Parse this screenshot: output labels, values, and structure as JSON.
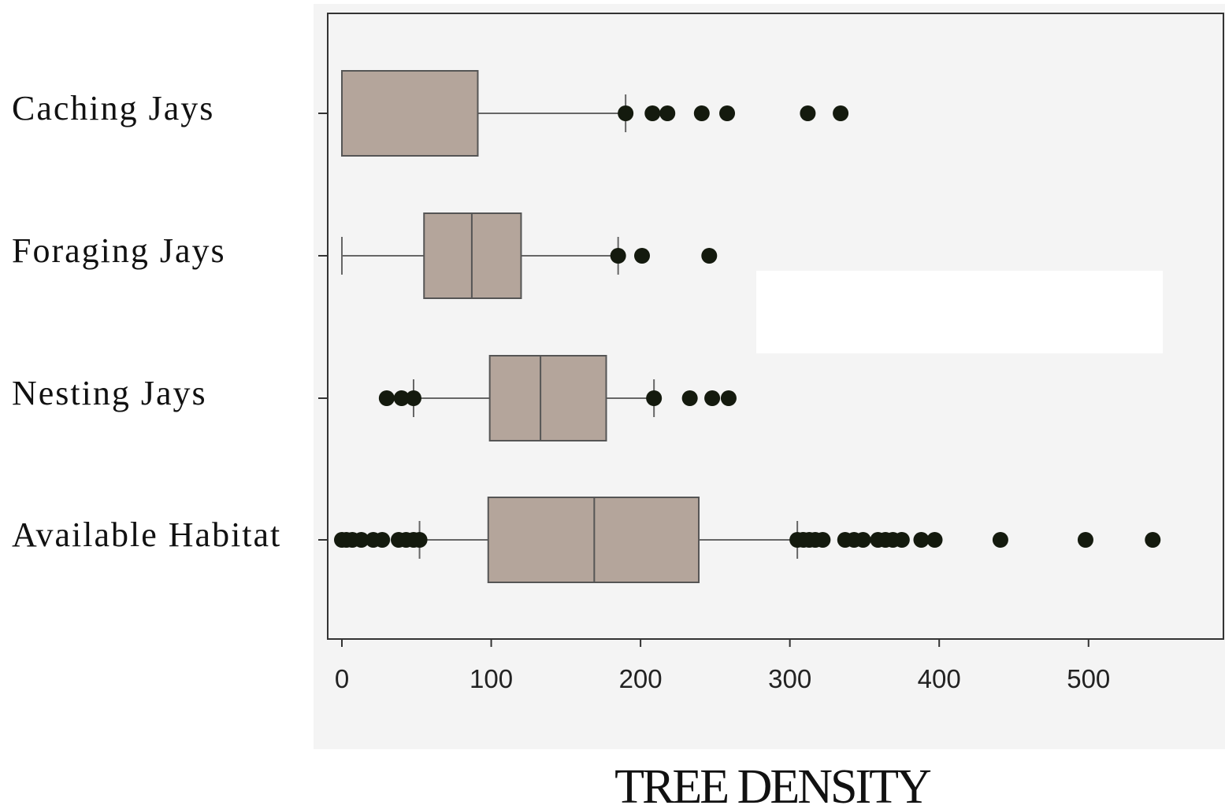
{
  "chart_data": {
    "type": "boxplot",
    "orientation": "horizontal",
    "title": "",
    "xlabel": "TREE DENSITY",
    "ylabel": "",
    "xlim": [
      -10,
      590
    ],
    "xticks": [
      0,
      100,
      200,
      300,
      400,
      500
    ],
    "grid": false,
    "legend": "none",
    "colors": {
      "box_fill": "#b4a59b",
      "box_stroke": "#555555",
      "whisker": "#666666",
      "outlier": "#141a0e",
      "plot_bg": "#f4f4f4",
      "axis": "#333333",
      "annotation_box": "#ffffff"
    },
    "series": [
      {
        "category": "Caching Jays",
        "whisker_low": 0,
        "q1": 0,
        "median": 0,
        "q3": 91,
        "whisker_high": 190,
        "outliers": [
          190,
          208,
          218,
          241,
          258,
          312,
          334
        ]
      },
      {
        "category": "Foraging Jays",
        "whisker_low": 0,
        "q1": 55,
        "median": 87,
        "q3": 120,
        "whisker_high": 185,
        "outliers": [
          185,
          201,
          246
        ]
      },
      {
        "category": "Nesting Jays",
        "whisker_low": 48,
        "q1": 99,
        "median": 133,
        "q3": 177,
        "whisker_high": 209,
        "outliers": [
          30,
          40,
          48,
          209,
          233,
          248,
          259
        ]
      },
      {
        "category": "Available Habitat",
        "whisker_low": 52,
        "q1": 98,
        "median": 169,
        "q3": 239,
        "whisker_high": 305,
        "outliers": [
          0,
          3,
          7,
          13,
          21,
          27,
          38,
          43,
          48,
          52,
          305,
          309,
          313,
          317,
          322,
          337,
          343,
          349,
          359,
          364,
          369,
          375,
          388,
          397,
          441,
          498,
          543
        ]
      }
    ]
  }
}
